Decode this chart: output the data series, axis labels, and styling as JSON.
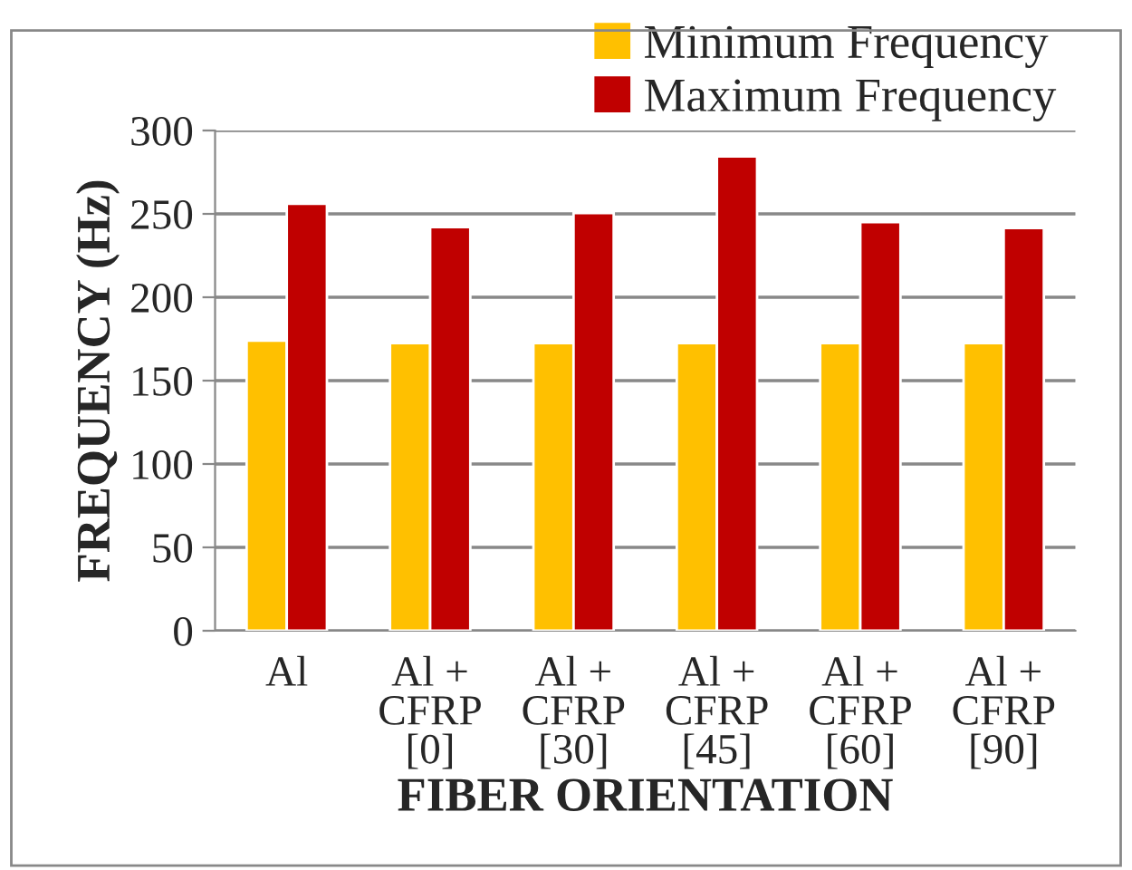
{
  "chart_data": {
    "type": "bar",
    "xlabel": "FIBER ORIENTATION",
    "ylabel": "FREQUENCY (Hz)",
    "categories": [
      "Al",
      "Al +\nCFRP\n[0]",
      "Al +\nCFRP\n[30]",
      "Al +\nCFRP\n[45]",
      "Al +\nCFRP\n[60]",
      "Al +\nCFRP\n[90]"
    ],
    "series": [
      {
        "name": "Minimum Frequency",
        "color": "#ffc000",
        "values": [
          174,
          172.5,
          172.5,
          172.5,
          172.5,
          172.5
        ]
      },
      {
        "name": "Maximum Frequency",
        "color": "#c00000",
        "values": [
          256,
          242,
          250.5,
          284.5,
          245,
          241.5
        ]
      }
    ],
    "ylim": [
      0,
      300
    ],
    "yticks": [
      0,
      50,
      100,
      150,
      200,
      250,
      300
    ],
    "grid": "y",
    "legend": "top right"
  }
}
